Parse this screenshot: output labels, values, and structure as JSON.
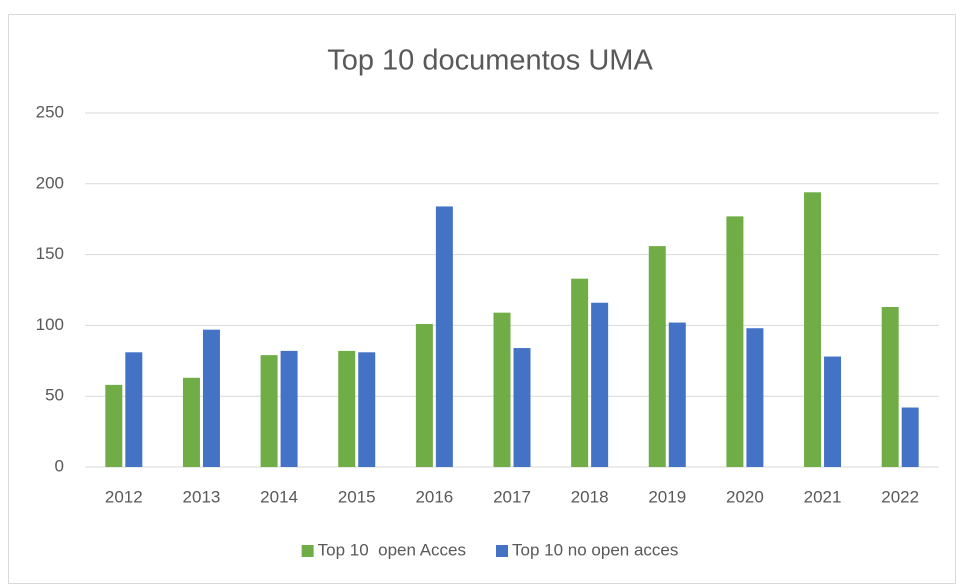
{
  "chart_data": {
    "type": "bar",
    "title": "Top 10 documentos UMA",
    "categories": [
      "2012",
      "2013",
      "2014",
      "2015",
      "2016",
      "2017",
      "2018",
      "2019",
      "2020",
      "2021",
      "2022"
    ],
    "series": [
      {
        "name": "Top 10  open Acces",
        "color": "#70ad47",
        "values": [
          58,
          63,
          79,
          82,
          101,
          109,
          133,
          156,
          177,
          194,
          113
        ]
      },
      {
        "name": "Top 10 no open acces",
        "color": "#4472c4",
        "values": [
          81,
          97,
          82,
          81,
          184,
          84,
          116,
          102,
          98,
          78,
          42
        ]
      }
    ],
    "ylim": [
      0,
      250
    ],
    "yticks": [
      0,
      50,
      100,
      150,
      200,
      250
    ],
    "grid": true,
    "legend": "bottom"
  }
}
